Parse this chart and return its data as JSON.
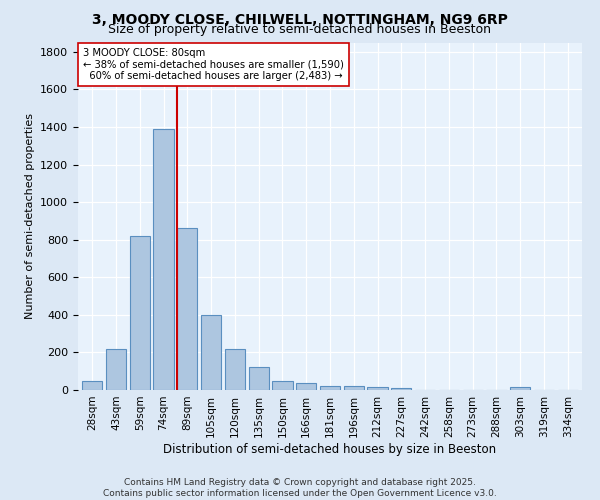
{
  "title_line1": "3, MOODY CLOSE, CHILWELL, NOTTINGHAM, NG9 6RP",
  "title_line2": "Size of property relative to semi-detached houses in Beeston",
  "xlabel": "Distribution of semi-detached houses by size in Beeston",
  "ylabel": "Number of semi-detached properties",
  "footnote": "Contains HM Land Registry data © Crown copyright and database right 2025.\nContains public sector information licensed under the Open Government Licence v3.0.",
  "categories": [
    "28sqm",
    "43sqm",
    "59sqm",
    "74sqm",
    "89sqm",
    "105sqm",
    "120sqm",
    "135sqm",
    "150sqm",
    "166sqm",
    "181sqm",
    "196sqm",
    "212sqm",
    "227sqm",
    "242sqm",
    "258sqm",
    "273sqm",
    "288sqm",
    "303sqm",
    "319sqm",
    "334sqm"
  ],
  "values": [
    50,
    220,
    820,
    1390,
    860,
    400,
    220,
    120,
    50,
    35,
    20,
    20,
    15,
    8,
    0,
    0,
    0,
    0,
    15,
    0,
    0
  ],
  "bar_color": "#adc6e0",
  "bar_edge_color": "#5a8fc0",
  "property_line_color": "#cc0000",
  "annotation_line1": "3 MOODY CLOSE: 80sqm",
  "annotation_line2": "← 38% of semi-detached houses are smaller (1,590)",
  "annotation_line3": "  60% of semi-detached houses are larger (2,483) →",
  "annotation_box_color": "#ffffff",
  "annotation_box_edge_color": "#cc0000",
  "ylim": [
    0,
    1850
  ],
  "background_color": "#dce8f5",
  "plot_background_color": "#e8f2fc",
  "grid_color": "#ffffff",
  "title_fontsize": 10,
  "subtitle_fontsize": 9,
  "footnote_fontsize": 6.5
}
